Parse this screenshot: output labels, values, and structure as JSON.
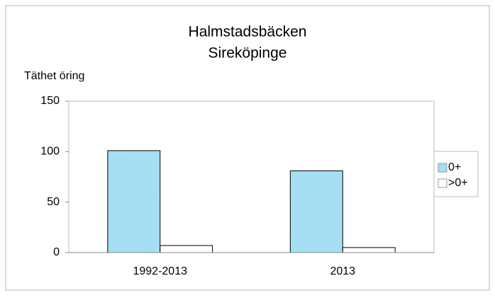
{
  "chart_data": {
    "type": "bar",
    "title": "Halmstadsbäcken",
    "subtitle": "Sireköpinge",
    "ylabel": "Täthet öring",
    "categories": [
      "1992-2013",
      "2013"
    ],
    "series": [
      {
        "name": "0+",
        "color": "#a8e0f6",
        "values": [
          101,
          81
        ]
      },
      {
        "name": ">0+",
        "color": "#ffffff",
        "values": [
          7,
          5
        ]
      }
    ],
    "ylim": [
      0,
      150
    ],
    "yticks": [
      0,
      50,
      100,
      150
    ],
    "grid": false,
    "legend": "right"
  }
}
